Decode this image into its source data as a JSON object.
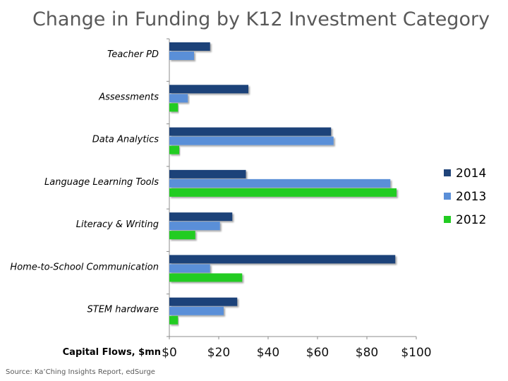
{
  "chart_data": {
    "type": "bar",
    "orientation": "horizontal",
    "title": "Change in Funding by K12 Investment Category",
    "xlabel": "Capital Flows, $mn",
    "ylabel": "",
    "xlim": [
      0,
      100
    ],
    "xticks": [
      "$0",
      "$20",
      "$40",
      "$60",
      "$80",
      "$100"
    ],
    "xtick_values": [
      0,
      20,
      40,
      60,
      80,
      100
    ],
    "categories": [
      "Teacher PD",
      "Assessments",
      "Data Analytics",
      "Language Learning Tools",
      "Literacy & Writing",
      "Home-to-School Communication",
      "STEM hardware"
    ],
    "series": [
      {
        "name": "2014",
        "color": "#1f4379",
        "values": [
          16.5,
          32,
          65.5,
          31,
          25.5,
          91.5,
          27.5
        ]
      },
      {
        "name": "2013",
        "color": "#5a8fd8",
        "values": [
          10,
          7.5,
          66.5,
          89.5,
          20.5,
          16.5,
          22
        ]
      },
      {
        "name": "2012",
        "color": "#22cc22",
        "values": [
          0,
          3.5,
          4,
          92,
          10.5,
          29.5,
          3.5
        ]
      }
    ],
    "legend": "right",
    "grid": false,
    "source": "Source: Ka’Ching Insights Report, edSurge"
  }
}
